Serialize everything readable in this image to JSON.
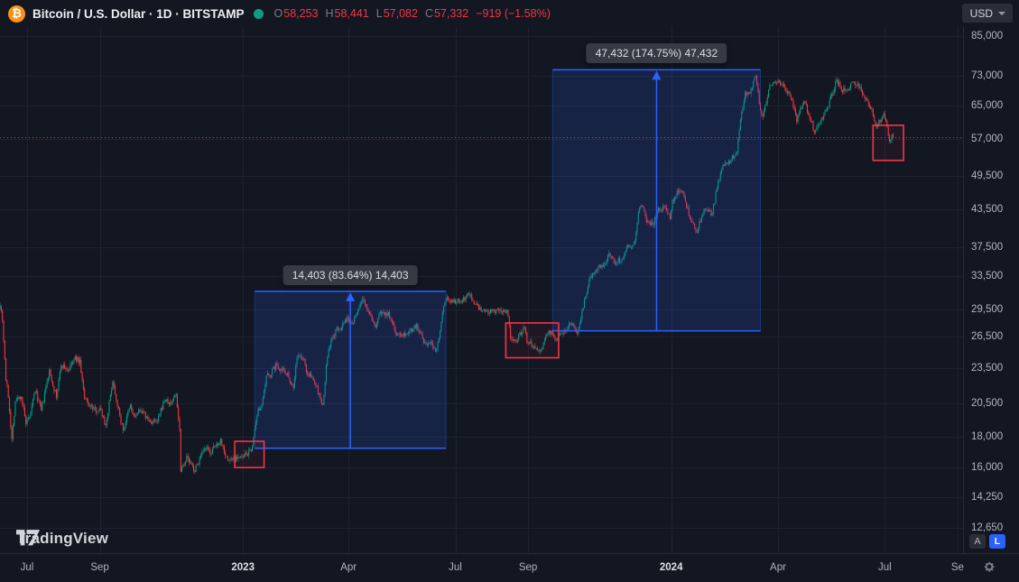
{
  "header": {
    "symbol_title": "Bitcoin / U.S. Dollar · 1D · BITSTAMP",
    "ohlc": {
      "open_label": "O",
      "open": "58,253",
      "high_label": "H",
      "high": "58,441",
      "low_label": "L",
      "low": "57,082",
      "close_label": "C",
      "close": "57,332",
      "change": "−919 (−1.58%)"
    },
    "currency": "USD"
  },
  "scale_buttons": {
    "auto": "A",
    "log": "L"
  },
  "footer": {
    "logo_text": "TradingView"
  },
  "chart_data": {
    "type": "candlestick",
    "symbol": "BTCUSD",
    "exchange": "BITSTAMP",
    "interval": "1D",
    "scale": "logarithmic",
    "grid": true,
    "colors": {
      "up": "#089981",
      "down": "#f23645",
      "accent": "#2962ff",
      "background": "#131722"
    },
    "current_price": 57332,
    "last_bar": {
      "open": 58253,
      "high": 58441,
      "low": 57082,
      "close": 57332
    },
    "price_axis": {
      "labels": [
        "85,000",
        "73,000",
        "65,000",
        "57,000",
        "49,500",
        "43,500",
        "37,500",
        "33,500",
        "29,500",
        "26,500",
        "23,500",
        "20,500",
        "18,000",
        "16,000",
        "14,250",
        "12,650"
      ],
      "values": [
        85000,
        73000,
        65000,
        57000,
        49500,
        43500,
        37500,
        33500,
        29500,
        26500,
        23500,
        20500,
        18000,
        16000,
        14250,
        12650
      ]
    },
    "time_axis": {
      "labels": [
        {
          "text": "Jul",
          "date": "2022-07-01",
          "bold": false
        },
        {
          "text": "Sep",
          "date": "2022-09-01",
          "bold": false
        },
        {
          "text": "2023",
          "date": "2023-01-01",
          "bold": true
        },
        {
          "text": "Apr",
          "date": "2023-04-01",
          "bold": false
        },
        {
          "text": "Jul",
          "date": "2023-07-01",
          "bold": false
        },
        {
          "text": "Sep",
          "date": "2023-09-01",
          "bold": false
        },
        {
          "text": "2024",
          "date": "2024-01-01",
          "bold": true
        },
        {
          "text": "Apr",
          "date": "2024-04-01",
          "bold": false
        },
        {
          "text": "Jul",
          "date": "2024-07-01",
          "bold": false
        },
        {
          "text": "Se",
          "date": "2024-09-01",
          "bold": false
        }
      ]
    },
    "measurements": [
      {
        "label": "14,403 (83.64%) 14,403",
        "start_date": "2023-01-11",
        "end_date": "2023-06-23",
        "price_low": 17222,
        "price_high": 31625
      },
      {
        "label": "47,432 (174.75%) 47,432",
        "start_date": "2023-09-22",
        "end_date": "2024-03-17",
        "price_low": 27143,
        "price_high": 74575
      }
    ],
    "red_boxes": [
      {
        "start_date": "2022-12-25",
        "end_date": "2023-01-19",
        "price_low": 15980,
        "price_high": 17690
      },
      {
        "start_date": "2023-08-13",
        "end_date": "2023-09-27",
        "price_low": 24450,
        "price_high": 27980
      },
      {
        "start_date": "2024-06-21",
        "end_date": "2024-07-17",
        "price_low": 52520,
        "price_high": 60180
      }
    ],
    "price_path": [
      [
        "2022-06-08",
        30200
      ],
      [
        "2022-06-10",
        28400
      ],
      [
        "2022-06-13",
        22500
      ],
      [
        "2022-06-15",
        21100
      ],
      [
        "2022-06-18",
        17800
      ],
      [
        "2022-06-21",
        20700
      ],
      [
        "2022-06-26",
        21100
      ],
      [
        "2022-06-30",
        18900
      ],
      [
        "2022-07-03",
        19300
      ],
      [
        "2022-07-08",
        21600
      ],
      [
        "2022-07-13",
        19900
      ],
      [
        "2022-07-20",
        23200
      ],
      [
        "2022-07-26",
        21000
      ],
      [
        "2022-07-30",
        23800
      ],
      [
        "2022-08-05",
        23300
      ],
      [
        "2022-08-11",
        24400
      ],
      [
        "2022-08-15",
        24100
      ],
      [
        "2022-08-19",
        20800
      ],
      [
        "2022-08-27",
        20000
      ],
      [
        "2022-09-02",
        20000
      ],
      [
        "2022-09-06",
        18800
      ],
      [
        "2022-09-12",
        22400
      ],
      [
        "2022-09-18",
        19500
      ],
      [
        "2022-09-21",
        18500
      ],
      [
        "2022-09-27",
        20300
      ],
      [
        "2022-09-30",
        19400
      ],
      [
        "2022-10-06",
        20000
      ],
      [
        "2022-10-13",
        19100
      ],
      [
        "2022-10-20",
        19050
      ],
      [
        "2022-10-26",
        20800
      ],
      [
        "2022-10-31",
        20400
      ],
      [
        "2022-11-05",
        21300
      ],
      [
        "2022-11-08",
        18500
      ],
      [
        "2022-11-09",
        15900
      ],
      [
        "2022-11-14",
        16600
      ],
      [
        "2022-11-21",
        15800
      ],
      [
        "2022-11-25",
        16500
      ],
      [
        "2022-11-30",
        17150
      ],
      [
        "2022-12-05",
        17000
      ],
      [
        "2022-12-13",
        17800
      ],
      [
        "2022-12-19",
        16400
      ],
      [
        "2022-12-27",
        16700
      ],
      [
        "2022-12-31",
        16550
      ],
      [
        "2023-01-04",
        16850
      ],
      [
        "2023-01-08",
        17100
      ],
      [
        "2023-01-12",
        18850
      ],
      [
        "2023-01-14",
        19900
      ],
      [
        "2023-01-18",
        20700
      ],
      [
        "2023-01-21",
        22700
      ],
      [
        "2023-01-25",
        23050
      ],
      [
        "2023-01-29",
        23750
      ],
      [
        "2023-02-03",
        23450
      ],
      [
        "2023-02-08",
        22950
      ],
      [
        "2023-02-13",
        21800
      ],
      [
        "2023-02-16",
        24550
      ],
      [
        "2023-02-21",
        24450
      ],
      [
        "2023-02-25",
        23000
      ],
      [
        "2023-03-03",
        22350
      ],
      [
        "2023-03-10",
        20200
      ],
      [
        "2023-03-14",
        24700
      ],
      [
        "2023-03-17",
        26000
      ],
      [
        "2023-03-22",
        27250
      ],
      [
        "2023-03-26",
        27500
      ],
      [
        "2023-03-31",
        28450
      ],
      [
        "2023-04-05",
        28200
      ],
      [
        "2023-04-10",
        29650
      ],
      [
        "2023-04-14",
        30700
      ],
      [
        "2023-04-19",
        28800
      ],
      [
        "2023-04-24",
        27600
      ],
      [
        "2023-04-28",
        29300
      ],
      [
        "2023-05-05",
        28900
      ],
      [
        "2023-05-12",
        26800
      ],
      [
        "2023-05-18",
        26800
      ],
      [
        "2023-05-23",
        27200
      ],
      [
        "2023-05-29",
        27700
      ],
      [
        "2023-06-05",
        25750
      ],
      [
        "2023-06-10",
        25850
      ],
      [
        "2023-06-15",
        25100
      ],
      [
        "2023-06-21",
        30000
      ],
      [
        "2023-06-23",
        30700
      ],
      [
        "2023-06-30",
        30450
      ],
      [
        "2023-07-06",
        30500
      ],
      [
        "2023-07-13",
        31400
      ],
      [
        "2023-07-17",
        30150
      ],
      [
        "2023-07-24",
        29200
      ],
      [
        "2023-07-31",
        29200
      ],
      [
        "2023-08-07",
        29200
      ],
      [
        "2023-08-14",
        29400
      ],
      [
        "2023-08-17",
        26600
      ],
      [
        "2023-08-22",
        26100
      ],
      [
        "2023-08-29",
        27700
      ],
      [
        "2023-08-31",
        25900
      ],
      [
        "2023-09-06",
        25750
      ],
      [
        "2023-09-11",
        25150
      ],
      [
        "2023-09-19",
        27200
      ],
      [
        "2023-09-24",
        26250
      ],
      [
        "2023-09-30",
        26950
      ],
      [
        "2023-10-07",
        27950
      ],
      [
        "2023-10-13",
        26850
      ],
      [
        "2023-10-16",
        28500
      ],
      [
        "2023-10-23",
        33100
      ],
      [
        "2023-10-27",
        33900
      ],
      [
        "2023-10-31",
        34650
      ],
      [
        "2023-11-06",
        35050
      ],
      [
        "2023-11-09",
        36700
      ],
      [
        "2023-11-14",
        35550
      ],
      [
        "2023-11-21",
        35800
      ],
      [
        "2023-11-24",
        37800
      ],
      [
        "2023-11-30",
        37700
      ],
      [
        "2023-12-05",
        44000
      ],
      [
        "2023-12-08",
        44200
      ],
      [
        "2023-12-11",
        41250
      ],
      [
        "2023-12-17",
        41350
      ],
      [
        "2023-12-22",
        43700
      ],
      [
        "2023-12-27",
        43450
      ],
      [
        "2023-12-31",
        42250
      ],
      [
        "2024-01-02",
        45000
      ],
      [
        "2024-01-08",
        47000
      ],
      [
        "2024-01-11",
        46350
      ],
      [
        "2024-01-18",
        41300
      ],
      [
        "2024-01-23",
        39900
      ],
      [
        "2024-01-29",
        43300
      ],
      [
        "2024-02-05",
        42700
      ],
      [
        "2024-02-09",
        47150
      ],
      [
        "2024-02-14",
        51800
      ],
      [
        "2024-02-20",
        52300
      ],
      [
        "2024-02-26",
        54500
      ],
      [
        "2024-02-29",
        61400
      ],
      [
        "2024-03-04",
        68300
      ],
      [
        "2024-03-08",
        68300
      ],
      [
        "2024-03-13",
        73100
      ],
      [
        "2024-03-16",
        65300
      ],
      [
        "2024-03-19",
        61900
      ],
      [
        "2024-03-25",
        69900
      ],
      [
        "2024-03-31",
        71300
      ],
      [
        "2024-04-07",
        69400
      ],
      [
        "2024-04-12",
        67200
      ],
      [
        "2024-04-17",
        61300
      ],
      [
        "2024-04-23",
        66400
      ],
      [
        "2024-04-30",
        60600
      ],
      [
        "2024-05-01",
        58300
      ],
      [
        "2024-05-08",
        61200
      ],
      [
        "2024-05-15",
        66200
      ],
      [
        "2024-05-21",
        71400
      ],
      [
        "2024-05-28",
        68400
      ],
      [
        "2024-06-05",
        71100
      ],
      [
        "2024-06-10",
        69600
      ],
      [
        "2024-06-18",
        65100
      ],
      [
        "2024-06-24",
        60300
      ],
      [
        "2024-06-30",
        62700
      ],
      [
        "2024-07-03",
        60200
      ],
      [
        "2024-07-05",
        56600
      ],
      [
        "2024-07-07",
        58250
      ],
      [
        "2024-07-08",
        57332
      ]
    ]
  }
}
